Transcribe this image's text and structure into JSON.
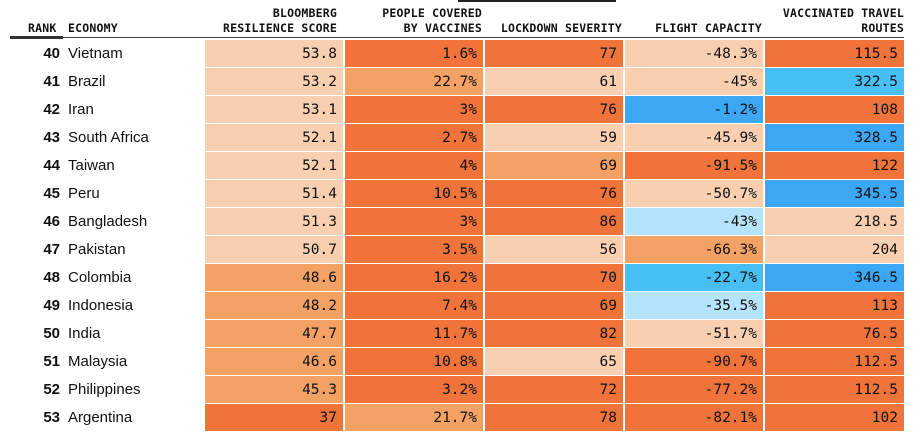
{
  "colors": {
    "light": "#f9cfb1",
    "mid": "#f3a164",
    "dark": "#ef733a",
    "blue": "#3ba7f5",
    "sky": "#47bff5",
    "pale_blue": "#b5e3fa"
  },
  "headers": {
    "rank": "RANK",
    "economy": "ECONOMY",
    "score": [
      "BLOOMBERG",
      "RESILIENCE SCORE"
    ],
    "vaccines": [
      "PEOPLE COVERED",
      "BY VACCINES"
    ],
    "lockdown": [
      "LOCKDOWN SEVERITY"
    ],
    "flight": [
      "FLIGHT CAPACITY"
    ],
    "routes": [
      "VACCINATED TRAVEL",
      "ROUTES"
    ]
  },
  "chart_data": {
    "type": "table",
    "columns": [
      "Rank",
      "Economy",
      "Bloomberg Resilience Score",
      "People Covered by Vaccines",
      "Lockdown Severity",
      "Flight Capacity",
      "Vaccinated Travel Routes"
    ],
    "rows": [
      {
        "rank": "40",
        "economy": "Vietnam",
        "score": "53.8",
        "vaccines": "1.6%",
        "lockdown": "77",
        "flight": "-48.3%",
        "routes": "115.5",
        "colors": [
          "light",
          "dark",
          "dark",
          "light",
          "dark"
        ]
      },
      {
        "rank": "41",
        "economy": "Brazil",
        "score": "53.2",
        "vaccines": "22.7%",
        "lockdown": "61",
        "flight": "-45%",
        "routes": "322.5",
        "colors": [
          "light",
          "mid",
          "light",
          "light",
          "sky"
        ]
      },
      {
        "rank": "42",
        "economy": "Iran",
        "score": "53.1",
        "vaccines": "3%",
        "lockdown": "76",
        "flight": "-1.2%",
        "routes": "108",
        "colors": [
          "light",
          "dark",
          "dark",
          "blue",
          "dark"
        ]
      },
      {
        "rank": "43",
        "economy": "South Africa",
        "score": "52.1",
        "vaccines": "2.7%",
        "lockdown": "59",
        "flight": "-45.9%",
        "routes": "328.5",
        "colors": [
          "light",
          "dark",
          "light",
          "light",
          "blue"
        ]
      },
      {
        "rank": "44",
        "economy": "Taiwan",
        "score": "52.1",
        "vaccines": "4%",
        "lockdown": "69",
        "flight": "-91.5%",
        "routes": "122",
        "colors": [
          "light",
          "dark",
          "mid",
          "dark",
          "dark"
        ]
      },
      {
        "rank": "45",
        "economy": "Peru",
        "score": "51.4",
        "vaccines": "10.5%",
        "lockdown": "76",
        "flight": "-50.7%",
        "routes": "345.5",
        "colors": [
          "light",
          "dark",
          "dark",
          "light",
          "blue"
        ]
      },
      {
        "rank": "46",
        "economy": "Bangladesh",
        "score": "51.3",
        "vaccines": "3%",
        "lockdown": "86",
        "flight": "-43%",
        "routes": "218.5",
        "colors": [
          "light",
          "dark",
          "dark",
          "pale_blue",
          "light"
        ]
      },
      {
        "rank": "47",
        "economy": "Pakistan",
        "score": "50.7",
        "vaccines": "3.5%",
        "lockdown": "56",
        "flight": "-66.3%",
        "routes": "204",
        "colors": [
          "light",
          "dark",
          "light",
          "mid",
          "light"
        ]
      },
      {
        "rank": "48",
        "economy": "Colombia",
        "score": "48.6",
        "vaccines": "16.2%",
        "lockdown": "70",
        "flight": "-22.7%",
        "routes": "346.5",
        "colors": [
          "mid",
          "dark",
          "dark",
          "sky",
          "blue"
        ]
      },
      {
        "rank": "49",
        "economy": "Indonesia",
        "score": "48.2",
        "vaccines": "7.4%",
        "lockdown": "69",
        "flight": "-35.5%",
        "routes": "113",
        "colors": [
          "mid",
          "dark",
          "dark",
          "pale_blue",
          "dark"
        ]
      },
      {
        "rank": "50",
        "economy": "India",
        "score": "47.7",
        "vaccines": "11.7%",
        "lockdown": "82",
        "flight": "-51.7%",
        "routes": "76.5",
        "colors": [
          "mid",
          "dark",
          "dark",
          "light",
          "dark"
        ]
      },
      {
        "rank": "51",
        "economy": "Malaysia",
        "score": "46.6",
        "vaccines": "10.8%",
        "lockdown": "65",
        "flight": "-90.7%",
        "routes": "112.5",
        "colors": [
          "mid",
          "dark",
          "light",
          "dark",
          "dark"
        ]
      },
      {
        "rank": "52",
        "economy": "Philippines",
        "score": "45.3",
        "vaccines": "3.2%",
        "lockdown": "72",
        "flight": "-77.2%",
        "routes": "112.5",
        "colors": [
          "mid",
          "dark",
          "dark",
          "dark",
          "dark"
        ]
      },
      {
        "rank": "53",
        "economy": "Argentina",
        "score": "37",
        "vaccines": "21.7%",
        "lockdown": "78",
        "flight": "-82.1%",
        "routes": "102",
        "colors": [
          "dark",
          "mid",
          "dark",
          "dark",
          "dark"
        ]
      }
    ]
  }
}
